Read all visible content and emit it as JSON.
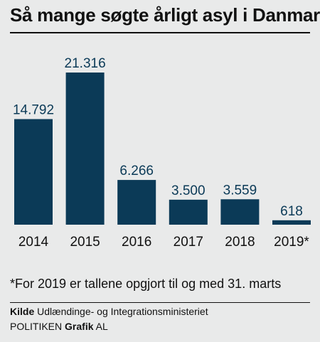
{
  "header": {
    "title": "Så mange søgte årligt asyl i Danmark"
  },
  "chart_data": {
    "type": "bar",
    "categories": [
      "2014",
      "2015",
      "2016",
      "2017",
      "2018",
      "2019*"
    ],
    "values": [
      14792,
      21316,
      6266,
      3500,
      3559,
      618
    ],
    "value_labels": [
      "14.792",
      "21.316",
      "6.266",
      "3.500",
      "3.559",
      "618"
    ],
    "title": "Så mange søgte årligt asyl i Danmark",
    "ylim": [
      0,
      21316
    ],
    "grid": false,
    "legend": "none",
    "bar_color": "#0b3a57"
  },
  "footnote": "*For 2019 er tallene opgjort til og med 31. marts",
  "source": {
    "label": "Kilde",
    "text": "Udlændinge- og Integrationsministeriet"
  },
  "credit": {
    "org": "POLITIKEN",
    "label": "Grafik",
    "initials": "AL"
  }
}
